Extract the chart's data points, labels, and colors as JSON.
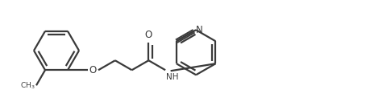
{
  "bg_color": "#ffffff",
  "line_color": "#3a3a3a",
  "line_width": 1.6,
  "fig_width": 4.6,
  "fig_height": 1.27,
  "dpi": 100,
  "xlim": [
    0,
    46
  ],
  "ylim": [
    0,
    12.7
  ]
}
